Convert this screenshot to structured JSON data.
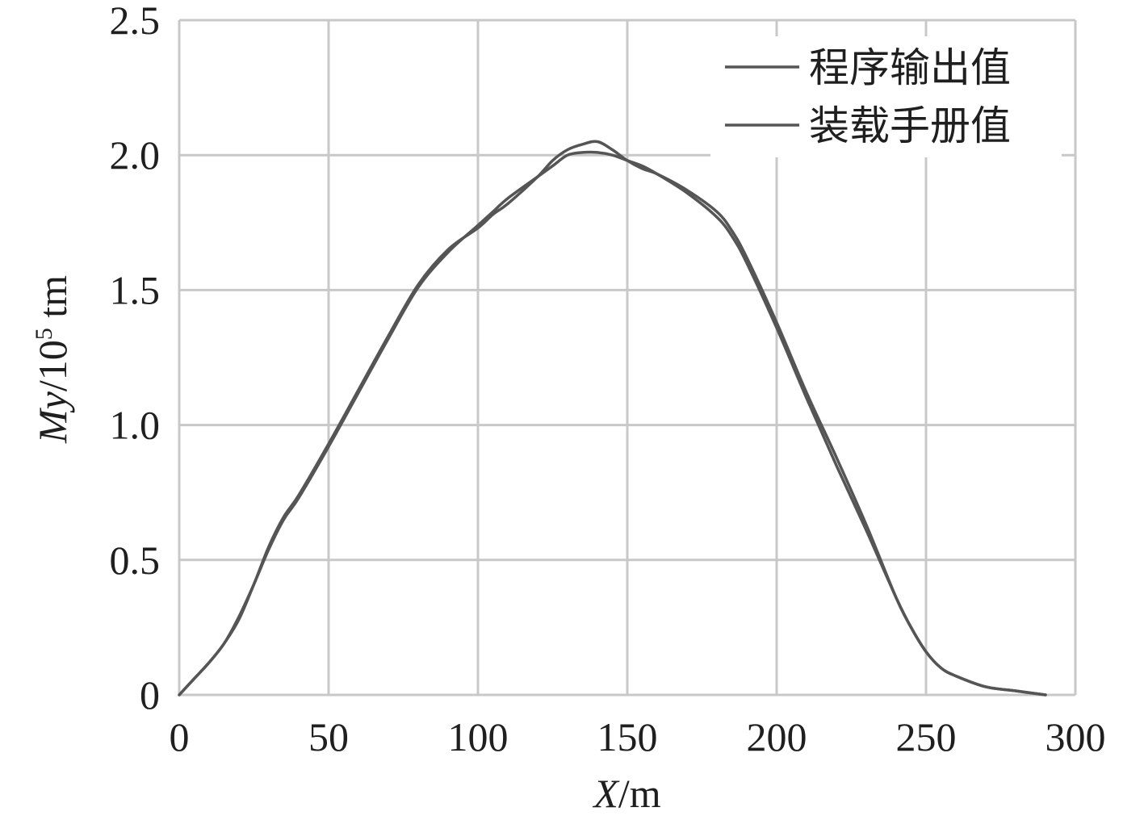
{
  "chart_data": {
    "type": "line",
    "title": "",
    "xlabel": {
      "var": "X",
      "unit": "/m"
    },
    "ylabel": {
      "var": "My",
      "unit_prefix": "/10",
      "exponent": "5",
      "unit_suffix": " tm"
    },
    "xlim": [
      0,
      300
    ],
    "ylim": [
      0,
      2.5
    ],
    "xticks": [
      0,
      50,
      100,
      150,
      200,
      250,
      300
    ],
    "xtick_labels": [
      "0",
      "50",
      "100",
      "150",
      "200",
      "250",
      "300"
    ],
    "yticks": [
      0,
      0.5,
      1.0,
      1.5,
      2.0,
      2.5
    ],
    "ytick_labels": [
      "0",
      "0.5",
      "1.0",
      "1.5",
      "2.0",
      "2.5"
    ],
    "grid": true,
    "legend_position": "top-right",
    "colors": {
      "series": "#555555",
      "grid": "#c8c8c8"
    },
    "series": [
      {
        "name": "程序输出值",
        "x": [
          0,
          5,
          10,
          15,
          20,
          25,
          30,
          35,
          40,
          50,
          60,
          70,
          80,
          90,
          100,
          105,
          110,
          120,
          125,
          130,
          135,
          140,
          145,
          150,
          155,
          160,
          170,
          180,
          185,
          190,
          200,
          210,
          220,
          230,
          240,
          245,
          250,
          255,
          260,
          270,
          280,
          290
        ],
        "y": [
          0,
          0.06,
          0.12,
          0.19,
          0.28,
          0.41,
          0.55,
          0.66,
          0.74,
          0.93,
          1.13,
          1.33,
          1.52,
          1.65,
          1.73,
          1.78,
          1.82,
          1.92,
          1.98,
          2.02,
          2.04,
          2.05,
          2.02,
          1.98,
          1.95,
          1.93,
          1.87,
          1.79,
          1.72,
          1.62,
          1.38,
          1.12,
          0.88,
          0.63,
          0.36,
          0.25,
          0.16,
          0.1,
          0.07,
          0.03,
          0.015,
          0.0
        ]
      },
      {
        "name": "装载手册值",
        "x": [
          0,
          5,
          10,
          15,
          20,
          25,
          30,
          35,
          40,
          50,
          60,
          70,
          80,
          90,
          100,
          105,
          110,
          120,
          125,
          130,
          135,
          140,
          145,
          150,
          155,
          160,
          170,
          180,
          185,
          190,
          200,
          210,
          220,
          230,
          240,
          245,
          250,
          255,
          260,
          270,
          280,
          290
        ],
        "y": [
          0,
          0.06,
          0.12,
          0.19,
          0.29,
          0.41,
          0.54,
          0.65,
          0.73,
          0.92,
          1.12,
          1.32,
          1.51,
          1.64,
          1.74,
          1.79,
          1.84,
          1.92,
          1.96,
          2.0,
          2.01,
          2.01,
          2.0,
          1.98,
          1.96,
          1.93,
          1.86,
          1.77,
          1.7,
          1.6,
          1.36,
          1.1,
          0.85,
          0.61,
          0.36,
          0.25,
          0.16,
          0.1,
          0.07,
          0.03,
          0.015,
          0.0
        ]
      }
    ]
  }
}
